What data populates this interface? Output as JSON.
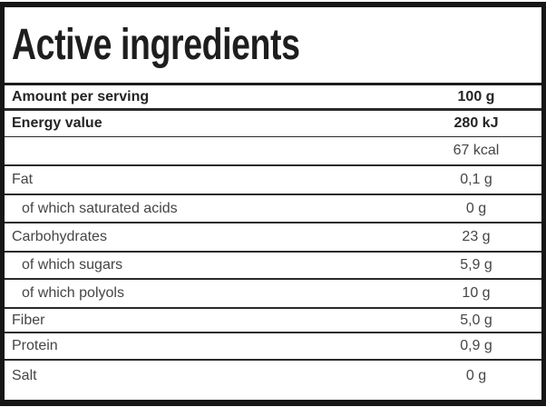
{
  "title": "Active ingredients",
  "table": {
    "rows": [
      {
        "label": "Amount per serving",
        "value": "100 g"
      },
      {
        "label": "Energy value",
        "value": "280 kJ"
      },
      {
        "label": "",
        "value": "67 kcal"
      },
      {
        "label": "Fat",
        "value": "0,1 g"
      },
      {
        "label": "of which saturated acids",
        "value": "0 g"
      },
      {
        "label": "Carbohydrates",
        "value": "23 g"
      },
      {
        "label": "of which sugars",
        "value": "5,9 g"
      },
      {
        "label": "of which polyols",
        "value": "10 g"
      },
      {
        "label": "Fiber",
        "value": "5,0 g"
      },
      {
        "label": "Protein",
        "value": "0,9 g"
      },
      {
        "label": "Salt",
        "value": "0 g"
      }
    ]
  },
  "colors": {
    "frame": "#161616",
    "title_text": "#1e1e1e",
    "bold_row_text": "#242424",
    "regular_row_text": "#454545",
    "row_divider": "#2a2a2a",
    "background": "#ffffff"
  }
}
